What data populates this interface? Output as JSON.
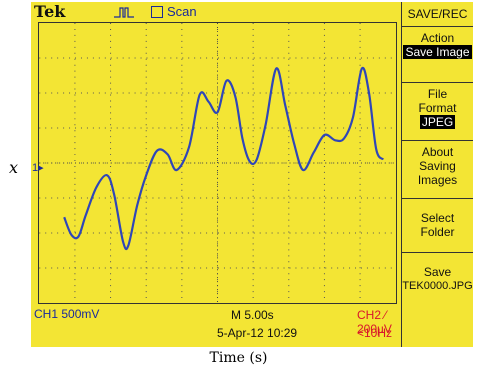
{
  "header": {
    "brand": "Tek",
    "trigger_status": "Scan"
  },
  "menu": {
    "title": "SAVE/REC",
    "items": [
      {
        "label": "Action",
        "value": "Save Image"
      },
      {
        "label": "File Format",
        "value": "JPEG"
      },
      {
        "label": "About Saving Images"
      },
      {
        "label": "Select Folder"
      },
      {
        "label": "Save",
        "value": "TEK0000.JPG"
      }
    ]
  },
  "status": {
    "ch1": "CH1  500mV",
    "timebase": "M 5.00s",
    "trigger": "CH2 ⁄ 200µV",
    "datetime": "5-Apr-12 10:29",
    "trigger_freq": "<10Hz"
  },
  "ch1_marker": "1▸",
  "axes": {
    "ylabel": "x",
    "xlabel": "Time (s)"
  },
  "colors": {
    "screen": "#f3e534",
    "trace": "#2f46b8",
    "ch2": "#d8162b"
  },
  "chart_data": {
    "type": "line",
    "x_divisions": 10,
    "y_divisions": 8,
    "series": [
      {
        "points": [
          [
            0.7,
            -1.55
          ],
          [
            0.9,
            -2.05
          ],
          [
            1.1,
            -2.1
          ],
          [
            1.3,
            -1.5
          ],
          [
            1.6,
            -0.7
          ],
          [
            1.9,
            -0.35
          ],
          [
            2.1,
            -0.9
          ],
          [
            2.35,
            -2.25
          ],
          [
            2.5,
            -2.35
          ],
          [
            2.75,
            -1.2
          ],
          [
            3.0,
            -0.35
          ],
          [
            3.3,
            0.35
          ],
          [
            3.6,
            0.25
          ],
          [
            3.85,
            -0.2
          ],
          [
            4.2,
            0.45
          ],
          [
            4.5,
            1.95
          ],
          [
            4.75,
            1.75
          ],
          [
            5.0,
            1.45
          ],
          [
            5.25,
            2.35
          ],
          [
            5.5,
            1.9
          ],
          [
            5.7,
            0.7
          ],
          [
            5.9,
            0.05
          ],
          [
            6.1,
            0.1
          ],
          [
            6.35,
            1.1
          ],
          [
            6.65,
            2.7
          ],
          [
            6.9,
            1.65
          ],
          [
            7.15,
            0.55
          ],
          [
            7.4,
            -0.2
          ],
          [
            7.7,
            0.3
          ],
          [
            8.0,
            0.8
          ],
          [
            8.3,
            0.65
          ],
          [
            8.55,
            0.7
          ],
          [
            8.8,
            1.3
          ],
          [
            9.05,
            2.7
          ],
          [
            9.25,
            2.0
          ],
          [
            9.45,
            0.4
          ],
          [
            9.65,
            0.1
          ]
        ]
      }
    ]
  }
}
